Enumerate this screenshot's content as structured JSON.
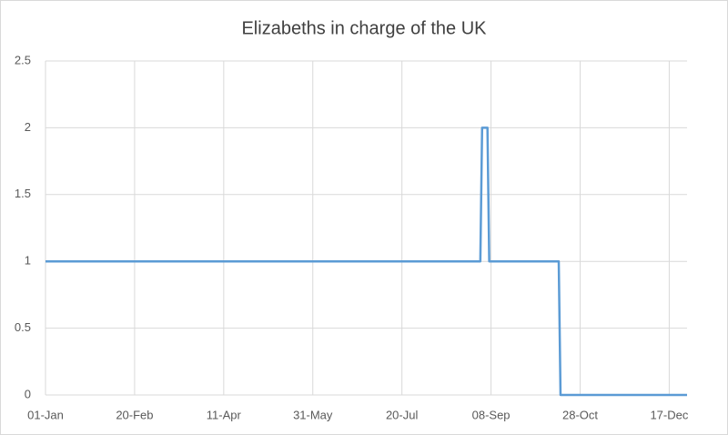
{
  "chart_data": {
    "type": "line",
    "title": "Elizabeths in charge of the UK",
    "x": [
      0,
      244,
      245,
      248,
      249,
      288,
      289,
      360
    ],
    "series": [
      {
        "color": "#5b9bd5",
        "values": [
          1,
          1,
          2,
          2,
          1,
          1,
          0,
          0
        ]
      }
    ],
    "xlim": [
      0,
      360
    ],
    "xticks": [
      {
        "value": 0,
        "label": "01-Jan"
      },
      {
        "value": 50,
        "label": "20-Feb"
      },
      {
        "value": 100,
        "label": "11-Apr"
      },
      {
        "value": 150,
        "label": "31-May"
      },
      {
        "value": 200,
        "label": "20-Jul"
      },
      {
        "value": 250,
        "label": "08-Sep"
      },
      {
        "value": 300,
        "label": "28-Oct"
      },
      {
        "value": 350,
        "label": "17-Dec"
      }
    ],
    "ylim": [
      0,
      2.5
    ],
    "yticks": [
      0,
      0.5,
      1,
      1.5,
      2,
      2.5
    ],
    "grid": true
  }
}
